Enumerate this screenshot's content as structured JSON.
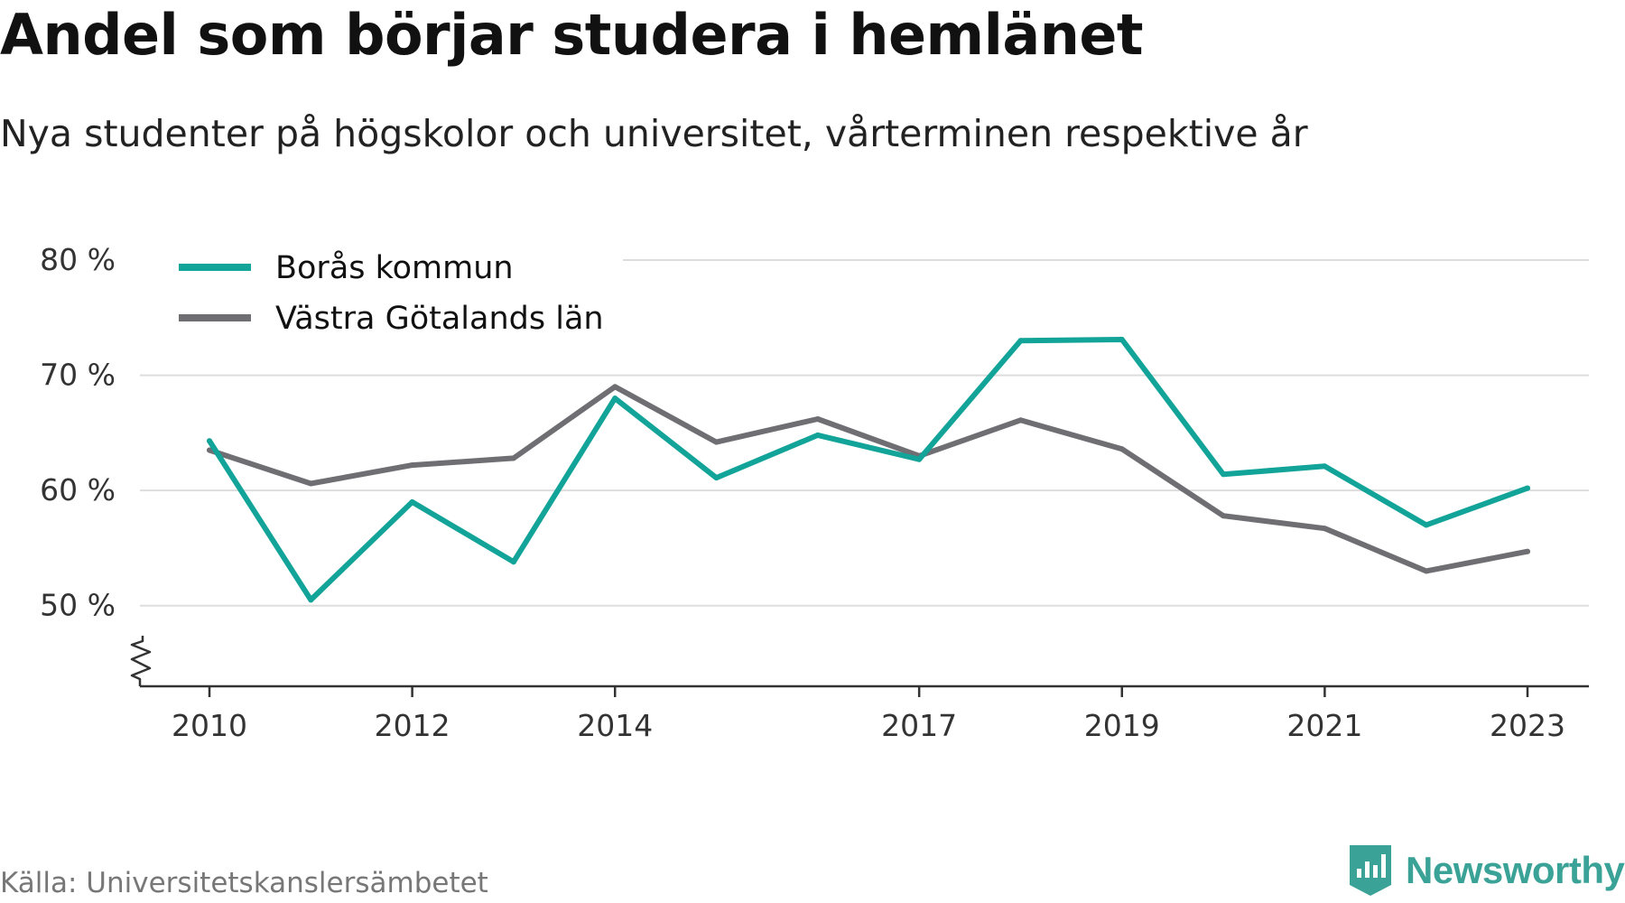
{
  "title": "Andel som börjar studera i hemlänet",
  "subtitle": "Nya studenter på högskolor och universitet, vårterminen respektive år",
  "source": "Källa: Universitetskanslersämbetet",
  "brand": "Newsworthy",
  "colors": {
    "brand": "#3aa296",
    "grid": "#dddddd",
    "axis": "#333333"
  },
  "chart_data": {
    "type": "line",
    "x": [
      2010,
      2011,
      2012,
      2013,
      2014,
      2015,
      2016,
      2017,
      2018,
      2019,
      2020,
      2021,
      2022,
      2023
    ],
    "series": [
      {
        "name": "Borås kommun",
        "color": "#12a399",
        "values": [
          64.3,
          50.5,
          59.0,
          53.8,
          68.0,
          61.1,
          64.8,
          62.7,
          73.0,
          73.1,
          61.4,
          62.1,
          57.0,
          60.2
        ]
      },
      {
        "name": "Västra Götalands län",
        "color": "#6e6e73",
        "values": [
          63.5,
          60.6,
          62.2,
          62.8,
          69.0,
          64.2,
          66.2,
          63.0,
          66.1,
          63.6,
          57.8,
          56.7,
          53.0,
          54.7
        ]
      }
    ],
    "ylim": [
      43,
      80
    ],
    "yticks": [
      50,
      60,
      70,
      80
    ],
    "ytick_labels": [
      "50 %",
      "60 %",
      "70 %",
      "80 %"
    ],
    "xticks": [
      2010,
      2012,
      2014,
      2017,
      2019,
      2021,
      2023
    ],
    "xtick_labels": [
      "2010",
      "2012",
      "2014",
      "2017",
      "2019",
      "2021",
      "2023"
    ],
    "y_axis_break": true,
    "grid": true,
    "legend": "top-left"
  }
}
